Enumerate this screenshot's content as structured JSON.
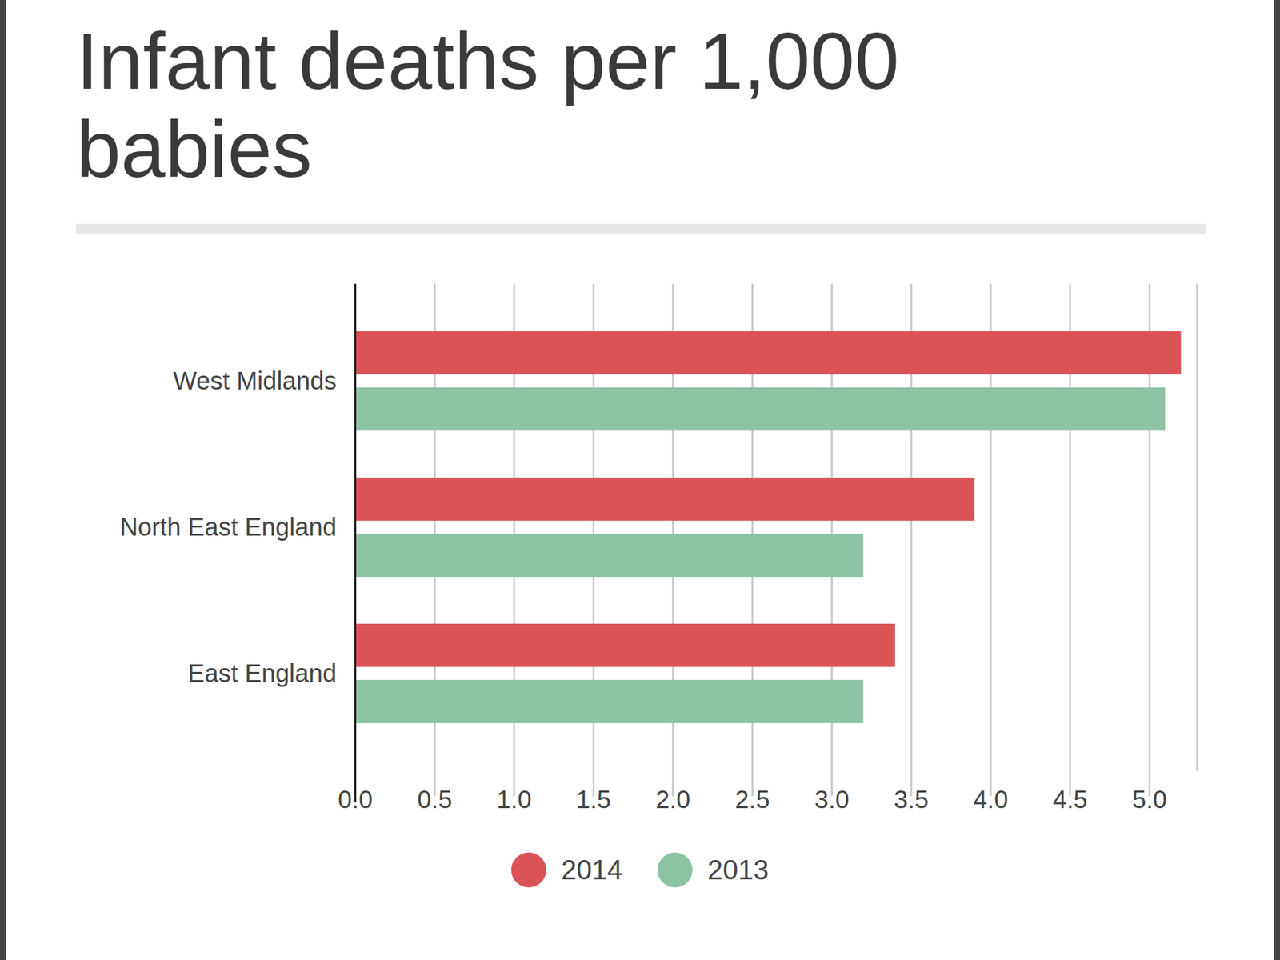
{
  "chart_data": {
    "type": "bar",
    "orientation": "horizontal",
    "title": "Infant deaths per 1,000 babies",
    "categories": [
      "West Midlands",
      "North East England",
      "East England"
    ],
    "series": [
      {
        "name": "2014",
        "color": "#db5257",
        "values": [
          5.2,
          3.9,
          3.4
        ]
      },
      {
        "name": "2013",
        "color": "#8cc3a5",
        "values": [
          5.1,
          3.2,
          3.2
        ]
      }
    ],
    "xlim": [
      0,
      5.3
    ],
    "xticks": [
      {
        "value": 0,
        "label": "0.0"
      },
      0.5,
      {
        "value": 1,
        "label": "1.0"
      },
      1.5,
      {
        "value": 2,
        "label": "2.0"
      },
      2.5,
      {
        "value": 3,
        "label": "3.0"
      },
      3.5,
      {
        "value": 4,
        "label": "4.0"
      },
      4.5,
      {
        "value": 5,
        "label": "5.0"
      }
    ],
    "grid": true,
    "legend": "bottom"
  }
}
